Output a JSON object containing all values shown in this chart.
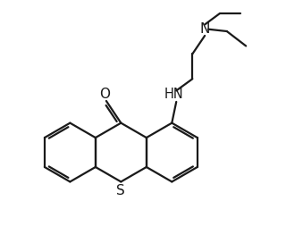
{
  "background_color": "#ffffff",
  "line_color": "#1a1a1a",
  "line_width": 1.6,
  "font_size": 10.5,
  "figsize": [
    3.2,
    2.72
  ],
  "dpi": 100,
  "xlim": [
    0,
    9.5
  ],
  "ylim": [
    0,
    8.1
  ]
}
